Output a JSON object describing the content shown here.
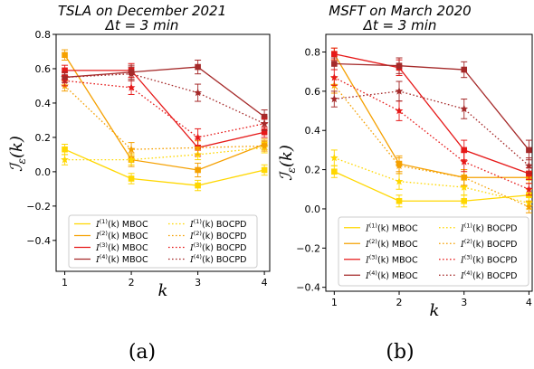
{
  "colors": {
    "s1": "#ffd700",
    "s2": "#f5a000",
    "s3": "#e61919",
    "s4": "#a52a2a"
  },
  "legend_entries": [
    {
      "prefix": "I",
      "sup": "(1)",
      "suffix": "(k) MBOC",
      "series": 0,
      "style": "solid"
    },
    {
      "prefix": "I",
      "sup": "(1)",
      "suffix": "(k) BOCPD",
      "series": 0,
      "style": "dotted"
    },
    {
      "prefix": "I",
      "sup": "(2)",
      "suffix": "(k) MBOC",
      "series": 1,
      "style": "solid"
    },
    {
      "prefix": "I",
      "sup": "(2)",
      "suffix": "(k) BOCPD",
      "series": 1,
      "style": "dotted"
    },
    {
      "prefix": "I",
      "sup": "(3)",
      "suffix": "(k) MBOC",
      "series": 2,
      "style": "solid"
    },
    {
      "prefix": "I",
      "sup": "(3)",
      "suffix": "(k) BOCPD",
      "series": 2,
      "style": "dotted"
    },
    {
      "prefix": "I",
      "sup": "(4)",
      "suffix": "(k) MBOC",
      "series": 3,
      "style": "solid"
    },
    {
      "prefix": "I",
      "sup": "(4)",
      "suffix": "(k) BOCPD",
      "series": 3,
      "style": "dotted"
    }
  ],
  "chart_data": [
    {
      "type": "line",
      "title": "TSLA on December 2021",
      "subtitle": "Δt = 3 min",
      "xlabel": "k",
      "ylabel": "I_ε(k)",
      "caption": "(a)",
      "x": [
        1,
        2,
        3,
        4
      ],
      "xticks": [
        "1",
        "2",
        "3",
        "4"
      ],
      "ylim": [
        -0.58,
        0.8
      ],
      "yticks": [
        -0.4,
        -0.2,
        0.0,
        0.2,
        0.4,
        0.6,
        0.8
      ],
      "ytick_labels": [
        "−0.4",
        "−0.2",
        "0.0",
        "0.2",
        "0.4",
        "0.6",
        "0.8"
      ],
      "legend": "lower-left",
      "grid": false,
      "series": [
        {
          "name": "I_ε^(1)(k) MBOC",
          "color_key": "s1",
          "style": "solid",
          "marker": "square",
          "values": [
            0.13,
            -0.04,
            -0.08,
            0.01
          ],
          "err": [
            0.03,
            0.03,
            0.03,
            0.03
          ]
        },
        {
          "name": "I_ε^(2)(k) MBOC",
          "color_key": "s2",
          "style": "solid",
          "marker": "square",
          "values": [
            0.68,
            0.07,
            0.01,
            0.16
          ],
          "err": [
            0.03,
            0.04,
            0.04,
            0.03
          ]
        },
        {
          "name": "I_ε^(3)(k) MBOC",
          "color_key": "s3",
          "style": "solid",
          "marker": "square",
          "values": [
            0.59,
            0.59,
            0.14,
            0.23
          ],
          "err": [
            0.03,
            0.04,
            0.05,
            0.03
          ]
        },
        {
          "name": "I_ε^(4)(k) MBOC",
          "color_key": "s4",
          "style": "solid",
          "marker": "square",
          "values": [
            0.55,
            0.58,
            0.61,
            0.32
          ],
          "err": [
            0.03,
            0.04,
            0.04,
            0.04
          ]
        },
        {
          "name": "I_ε^(1)(k) BOCPD",
          "color_key": "s1",
          "style": "dotted",
          "marker": "star",
          "values": [
            0.07,
            0.07,
            0.1,
            0.14
          ],
          "err": [
            0.03,
            0.03,
            0.03,
            0.03
          ]
        },
        {
          "name": "I_ε^(2)(k) BOCPD",
          "color_key": "s2",
          "style": "dotted",
          "marker": "star",
          "values": [
            0.5,
            0.13,
            0.14,
            0.15
          ],
          "err": [
            0.03,
            0.04,
            0.04,
            0.03
          ]
        },
        {
          "name": "I_ε^(3)(k) BOCPD",
          "color_key": "s3",
          "style": "dotted",
          "marker": "star",
          "values": [
            0.53,
            0.49,
            0.2,
            0.28
          ],
          "err": [
            0.03,
            0.04,
            0.05,
            0.03
          ]
        },
        {
          "name": "I_ε^(4)(k) BOCPD",
          "color_key": "s4",
          "style": "dotted",
          "marker": "star",
          "values": [
            0.55,
            0.57,
            0.46,
            0.28
          ],
          "err": [
            0.03,
            0.04,
            0.05,
            0.04
          ]
        }
      ]
    },
    {
      "type": "line",
      "title": "MSFT on March 2020",
      "subtitle": "Δt = 3 min",
      "xlabel": "k",
      "ylabel": "I_ε(k)",
      "caption": "(b)",
      "x": [
        1,
        2,
        3,
        4
      ],
      "xticks": [
        "1",
        "2",
        "3",
        "4"
      ],
      "ylim": [
        -0.42,
        0.89
      ],
      "yticks": [
        -0.4,
        -0.2,
        0.0,
        0.2,
        0.4,
        0.6,
        0.8
      ],
      "ytick_labels": [
        "−0.4",
        "−0.2",
        "0.0",
        "0.2",
        "0.4",
        "0.6",
        "0.8"
      ],
      "legend": "lower-left",
      "grid": false,
      "series": [
        {
          "name": "I_ε^(1)(k) MBOC",
          "color_key": "s1",
          "style": "solid",
          "marker": "square",
          "values": [
            0.19,
            0.04,
            0.04,
            0.07
          ],
          "err": [
            0.03,
            0.03,
            0.03,
            0.03
          ]
        },
        {
          "name": "I_ε^(2)(k) MBOC",
          "color_key": "s2",
          "style": "solid",
          "marker": "square",
          "values": [
            0.79,
            0.23,
            0.16,
            0.16
          ],
          "err": [
            0.03,
            0.04,
            0.04,
            0.03
          ]
        },
        {
          "name": "I_ε^(3)(k) MBOC",
          "color_key": "s3",
          "style": "solid",
          "marker": "square",
          "values": [
            0.79,
            0.72,
            0.3,
            0.18
          ],
          "err": [
            0.03,
            0.04,
            0.05,
            0.03
          ]
        },
        {
          "name": "I_ε^(4)(k) MBOC",
          "color_key": "s4",
          "style": "solid",
          "marker": "square",
          "values": [
            0.74,
            0.73,
            0.71,
            0.3
          ],
          "err": [
            0.03,
            0.04,
            0.04,
            0.05
          ]
        },
        {
          "name": "I_ε^(1)(k) BOCPD",
          "color_key": "s1",
          "style": "dotted",
          "marker": "star",
          "values": [
            0.26,
            0.14,
            0.11,
            0.03
          ],
          "err": [
            0.04,
            0.04,
            0.04,
            0.03
          ]
        },
        {
          "name": "I_ε^(2)(k) BOCPD",
          "color_key": "s2",
          "style": "dotted",
          "marker": "star",
          "values": [
            0.63,
            0.22,
            0.16,
            0.01
          ],
          "err": [
            0.04,
            0.04,
            0.04,
            0.03
          ]
        },
        {
          "name": "I_ε^(3)(k) BOCPD",
          "color_key": "s3",
          "style": "dotted",
          "marker": "star",
          "values": [
            0.67,
            0.5,
            0.24,
            0.1
          ],
          "err": [
            0.04,
            0.05,
            0.05,
            0.03
          ]
        },
        {
          "name": "I_ε^(4)(k) BOCPD",
          "color_key": "s4",
          "style": "dotted",
          "marker": "star",
          "values": [
            0.56,
            0.6,
            0.51,
            0.22
          ],
          "err": [
            0.04,
            0.05,
            0.05,
            0.04
          ]
        }
      ]
    }
  ]
}
